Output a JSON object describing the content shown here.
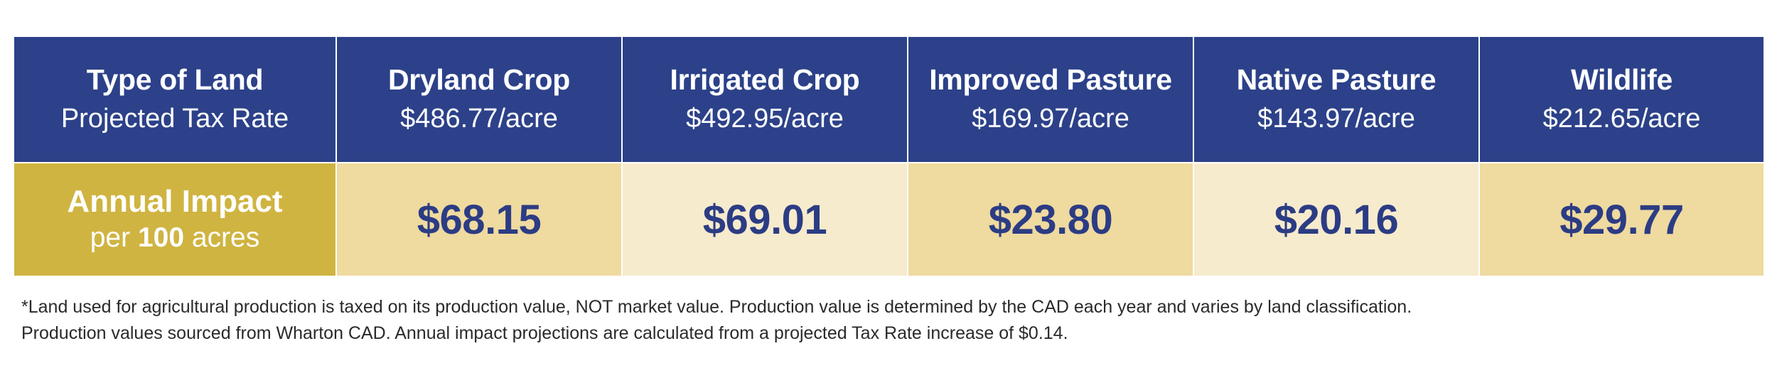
{
  "header": {
    "type_of_land": "Type of Land",
    "projected_tax_rate": "Projected Tax Rate",
    "columns": [
      {
        "land": "Dryland Crop",
        "rate": "$486.77/acre"
      },
      {
        "land": "Irrigated Crop",
        "rate": "$492.95/acre"
      },
      {
        "land": "Improved Pasture",
        "rate": "$169.97/acre"
      },
      {
        "land": "Native Pasture",
        "rate": "$143.97/acre"
      },
      {
        "land": "Wildlife",
        "rate": "$212.65/acre"
      }
    ]
  },
  "impact_row": {
    "label": "Annual Impact",
    "sub_prefix": "per",
    "sub_number": "100",
    "sub_suffix": "acres",
    "values": [
      "$68.15",
      "$69.01",
      "$23.80",
      "$20.16",
      "$29.77"
    ]
  },
  "footnote": {
    "line1": "*Land used for agricultural production is taxed on its production value, NOT market value. Production value is determined by the CAD each year and varies by land classification.",
    "line2": "Production values sourced from Wharton CAD. Annual impact projections are calculated from a projected Tax Rate increase of $0.14."
  },
  "colors": {
    "header_blue": "#2c4189",
    "impact_gold": "#cfb441",
    "value_tan_dark": "#efda9f",
    "value_tan_light": "#f6ebcd",
    "value_text_blue": "#2c3c84"
  }
}
